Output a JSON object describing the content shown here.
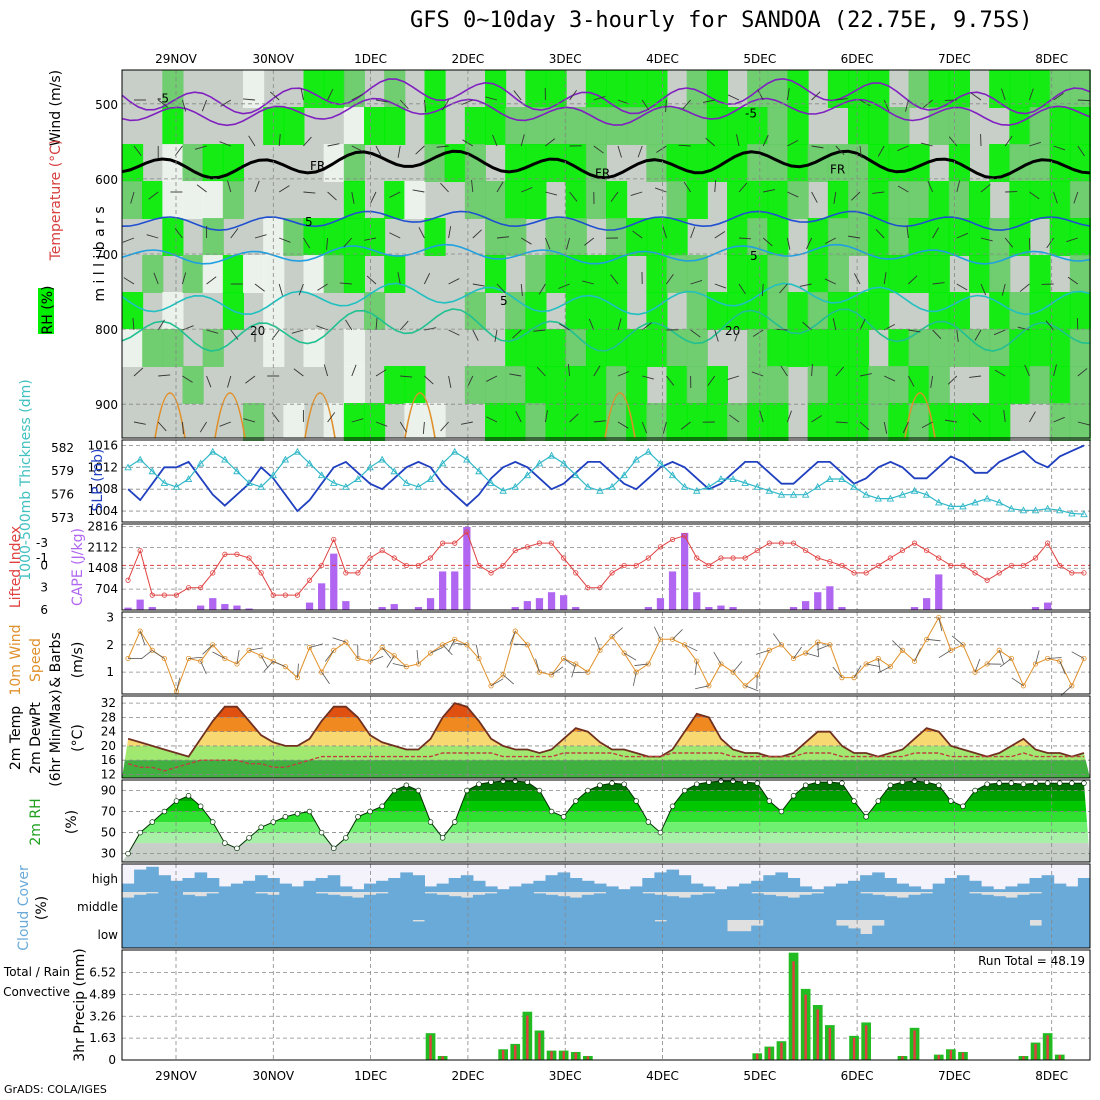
{
  "title": "GFS 0~10day 3-hourly for SANDOA (22.75E, 9.75S)",
  "credit": "GrADS: COLA/IGES",
  "dates": [
    "29NOV",
    "30NOV",
    "1DEC",
    "2DEC",
    "3DEC",
    "4DEC",
    "5DEC",
    "6DEC",
    "7DEC",
    "8DEC"
  ],
  "colors": {
    "green_bright": "#00ee00",
    "green_mid": "#66cc66",
    "grey": "#c8cfc8",
    "purple": "#b066f0",
    "red": "#e04040",
    "blue": "#2040c0",
    "cyan": "#40c0c0",
    "orange": "#e0902a",
    "sky": "#6aaad8"
  },
  "chart_data": [
    {
      "type": "heatmap",
      "name": "upper-air",
      "axis_label_left": "Wind (m/s)",
      "axis_label_temp": "Temperature (°C)",
      "axis_label_rh": "RH (%)",
      "ylabel": "millibars",
      "yticks": [
        500,
        600,
        700,
        800,
        900
      ],
      "contour_labels": [
        "-5",
        "-5",
        "FR",
        "FR",
        "FR",
        "5",
        "5",
        "5",
        "20",
        "20"
      ]
    },
    {
      "type": "line",
      "name": "slp-thickness",
      "ylabel_left": "1000-500mb Thickness (dm)",
      "ylabel_right": "SLP (mb)",
      "yticks_left": [
        573,
        576,
        579,
        582
      ],
      "yticks_right": [
        1004,
        1008,
        1012,
        1016
      ],
      "series": [
        {
          "name": "SLP",
          "color": "#2040c0",
          "values": [
            1008,
            1006,
            1009,
            1012,
            1012,
            1013,
            1010,
            1007,
            1005,
            1007,
            1009,
            1012,
            1010,
            1007,
            1004,
            1006,
            1009,
            1012,
            1013,
            1011,
            1009,
            1008,
            1010,
            1012,
            1013,
            1012,
            1009,
            1007,
            1005,
            1007,
            1010,
            1012,
            1013,
            1012,
            1010,
            1008,
            1009,
            1011,
            1013,
            1013,
            1011,
            1009,
            1008,
            1010,
            1012,
            1013,
            1012,
            1010,
            1008,
            1009,
            1011,
            1013,
            1013,
            1011,
            1009,
            1009,
            1011,
            1013,
            1013,
            1011,
            1009,
            1010,
            1012,
            1013,
            1012,
            1010,
            1010,
            1012,
            1014,
            1013,
            1011,
            1011,
            1013,
            1014,
            1015,
            1013,
            1012,
            1014,
            1015,
            1016
          ]
        },
        {
          "name": "Thickness",
          "color": "#30b8c8",
          "values": [
            579.5,
            580.5,
            579,
            577.5,
            577,
            578,
            580,
            581.5,
            580.5,
            579,
            577.5,
            577,
            578.5,
            580.5,
            581.5,
            580,
            578.5,
            577.5,
            577,
            578,
            579.5,
            580.5,
            579,
            577.5,
            577,
            578,
            580,
            581.5,
            580.5,
            579,
            577.5,
            576.5,
            577,
            578.5,
            580,
            581,
            580,
            578.5,
            577,
            576.5,
            577,
            578.5,
            580.5,
            581.5,
            580,
            578.5,
            577,
            576.5,
            577,
            578,
            578,
            577.5,
            577,
            576.5,
            576,
            576,
            576,
            577,
            578,
            578,
            577,
            576,
            575.5,
            575.5,
            576,
            576.5,
            576,
            575,
            574.5,
            574.5,
            575,
            575.5,
            575,
            574.2,
            574,
            574,
            574.2,
            574,
            573.6,
            573.5
          ]
        }
      ]
    },
    {
      "type": "bar",
      "name": "lifted-index-cape",
      "ylabel_left": "Lifted Index",
      "ylabel_right": "CAPE (J/kg)",
      "yticks_left": [
        -3,
        -1,
        0,
        3,
        6
      ],
      "yticks_right": [
        704,
        1408,
        2112,
        2816
      ],
      "series": [
        {
          "name": "CAPE",
          "color": "#b066f0",
          "values": [
            80,
            350,
            100,
            0,
            0,
            0,
            150,
            400,
            200,
            150,
            50,
            0,
            0,
            0,
            0,
            250,
            900,
            1900,
            300,
            0,
            0,
            100,
            200,
            0,
            100,
            400,
            1300,
            1300,
            2800,
            0,
            0,
            0,
            100,
            300,
            400,
            600,
            500,
            100,
            0,
            0,
            0,
            0,
            0,
            100,
            400,
            1300,
            2600,
            600,
            100,
            150,
            100,
            0,
            0,
            0,
            0,
            100,
            300,
            600,
            800,
            100,
            0,
            0,
            0,
            0,
            0,
            100,
            400,
            1200,
            0,
            0,
            0,
            0,
            0,
            0,
            0,
            100,
            250,
            0,
            0,
            0
          ]
        },
        {
          "name": "Lifted Index",
          "color": "#e04040",
          "values": [
            2,
            -2,
            4,
            4,
            4,
            3,
            3,
            1,
            -1.5,
            -1.5,
            -1,
            1,
            4,
            4,
            4,
            2,
            0,
            -3.5,
            1,
            1,
            -1,
            -2,
            -1,
            0,
            0,
            -1,
            -3,
            -3,
            -4.5,
            0,
            1,
            0,
            -2,
            -2.5,
            -3,
            -3,
            -1,
            1,
            3,
            3,
            1,
            0,
            0,
            -1,
            -2.5,
            -3.5,
            -4,
            -1,
            0,
            -1,
            -1,
            -1,
            -2,
            -3,
            -3,
            -3,
            -2,
            -1,
            -0.5,
            0,
            1,
            1,
            0,
            -1,
            -2,
            -3,
            -2,
            -1,
            0,
            0,
            1,
            2,
            1,
            0,
            0,
            -1,
            -3,
            0,
            1,
            1
          ]
        }
      ]
    },
    {
      "type": "line",
      "name": "10m-wind",
      "ylabel": "10m Wind Speed & Barbs (m/s)",
      "yticks": [
        1,
        2,
        3
      ],
      "series": [
        {
          "name": "Wind Speed",
          "color": "#e0902a",
          "values": [
            1.5,
            2.5,
            1.8,
            1.5,
            0.3,
            1.5,
            1.4,
            2.0,
            1.5,
            1.3,
            1.8,
            1.6,
            1.4,
            1.2,
            0.8,
            1.9,
            1.0,
            1.8,
            2.1,
            1.5,
            1.4,
            1.9,
            1.6,
            1.2,
            1.3,
            1.7,
            2.0,
            2.2,
            2.0,
            1.5,
            0.5,
            0.9,
            2.5,
            2.0,
            1.0,
            0.9,
            1.5,
            1.3,
            1.0,
            1.8,
            2.3,
            1.7,
            1.0,
            1.3,
            2.2,
            2.2,
            2.0,
            1.4,
            0.5,
            1.3,
            1.0,
            0.5,
            0.9,
            1.8,
            2.0,
            1.5,
            1.7,
            2.1,
            2.0,
            0.8,
            0.8,
            1.3,
            1.5,
            1.2,
            1.8,
            1.4,
            2.2,
            3.0,
            1.8,
            2.0,
            1.0,
            1.3,
            1.8,
            1.5,
            0.5,
            1.3,
            1.5,
            1.4,
            0.5,
            1.5
          ]
        }
      ]
    },
    {
      "type": "area",
      "name": "2m-temp",
      "ylabel": "2m Temp 2m DewPt (6hr Min/Max) (°C)",
      "yticks": [
        12,
        16,
        20,
        24,
        28,
        32
      ],
      "series": [
        {
          "name": "2m Temp",
          "color": "#703020",
          "values": [
            22,
            21,
            20,
            19,
            18,
            17,
            22,
            27,
            31,
            31,
            27,
            23,
            21,
            20,
            20,
            22,
            27,
            31,
            31,
            28,
            23,
            21,
            20,
            19,
            19,
            22,
            28,
            32,
            31,
            27,
            22,
            20,
            19,
            19,
            18,
            19,
            22,
            25,
            24,
            21,
            19,
            19,
            18,
            17,
            17,
            19,
            24,
            29,
            28,
            22,
            19,
            18,
            18,
            17,
            17,
            18,
            21,
            24,
            24,
            20,
            18,
            18,
            17,
            18,
            19,
            22,
            25,
            24,
            20,
            19,
            18,
            17,
            18,
            20,
            22,
            19,
            18,
            18,
            17,
            18
          ]
        },
        {
          "name": "2m DewPt",
          "color": "#c04040",
          "values": [
            15,
            14,
            14,
            13,
            14,
            15,
            16,
            16,
            16,
            16,
            15,
            15,
            14,
            14,
            15,
            16,
            17,
            17,
            17,
            17,
            17,
            17,
            17,
            17,
            17,
            17,
            18,
            18,
            18,
            18,
            18,
            17,
            17,
            17,
            17,
            17,
            18,
            18,
            18,
            18,
            18,
            17,
            17,
            17,
            17,
            18,
            18,
            18,
            18,
            18,
            17,
            17,
            17,
            17,
            17,
            17,
            18,
            18,
            18,
            17,
            17,
            17,
            17,
            17,
            17,
            18,
            18,
            18,
            17,
            17,
            17,
            17,
            17,
            17,
            18,
            17,
            17,
            17,
            17,
            17
          ]
        }
      ]
    },
    {
      "type": "area",
      "name": "2m-rh",
      "ylabel": "2m RH (%)",
      "yticks": [
        30,
        50,
        70,
        90
      ],
      "series": [
        {
          "name": "2m RH",
          "color": "#00aa00",
          "values": [
            30,
            50,
            60,
            70,
            80,
            85,
            75,
            60,
            40,
            35,
            45,
            55,
            60,
            65,
            68,
            70,
            50,
            35,
            45,
            65,
            70,
            75,
            90,
            95,
            90,
            60,
            45,
            60,
            90,
            96,
            98,
            99,
            99,
            98,
            90,
            70,
            65,
            80,
            90,
            95,
            97,
            96,
            80,
            60,
            50,
            75,
            90,
            96,
            98,
            99,
            99,
            98,
            97,
            80,
            70,
            85,
            95,
            98,
            98,
            97,
            80,
            65,
            80,
            95,
            98,
            99,
            98,
            95,
            80,
            75,
            90,
            96,
            97,
            97,
            96,
            97,
            97,
            97,
            97,
            97
          ]
        }
      ]
    },
    {
      "type": "bar",
      "name": "cloud-cover",
      "ylabel": "Cloud Cover (%)",
      "ylabels": [
        "high",
        "middle",
        "low"
      ],
      "series": [
        {
          "name": "high",
          "values": [
            30,
            80,
            90,
            60,
            40,
            50,
            70,
            50,
            20,
            30,
            40,
            60,
            50,
            30,
            20,
            40,
            50,
            60,
            20,
            10,
            30,
            40,
            50,
            70,
            60,
            20,
            30,
            50,
            60,
            40,
            20,
            10,
            20,
            30,
            40,
            60,
            70,
            50,
            40,
            30,
            20,
            10,
            20,
            50,
            70,
            80,
            60,
            30,
            20,
            10,
            20,
            30,
            40,
            60,
            70,
            50,
            20,
            10,
            20,
            30,
            40,
            60,
            70,
            50,
            30,
            20,
            10,
            30,
            50,
            60,
            40,
            20,
            10,
            20,
            30,
            50,
            60,
            30,
            20,
            50
          ]
        },
        {
          "name": "middle",
          "values": [
            80,
            90,
            95,
            100,
            100,
            90,
            85,
            95,
            100,
            100,
            100,
            95,
            90,
            100,
            100,
            100,
            95,
            90,
            85,
            80,
            90,
            95,
            100,
            100,
            100,
            95,
            90,
            85,
            80,
            90,
            95,
            100,
            100,
            100,
            95,
            90,
            85,
            80,
            90,
            95,
            100,
            100,
            100,
            95,
            90,
            85,
            80,
            90,
            95,
            100,
            100,
            100,
            95,
            90,
            85,
            80,
            90,
            95,
            100,
            100,
            100,
            95,
            90,
            85,
            80,
            90,
            95,
            100,
            100,
            100,
            95,
            90,
            85,
            80,
            90,
            95,
            100,
            100,
            100,
            100
          ]
        },
        {
          "name": "low",
          "values": [
            100,
            100,
            100,
            100,
            100,
            100,
            100,
            100,
            100,
            100,
            100,
            100,
            100,
            100,
            100,
            100,
            100,
            100,
            100,
            100,
            100,
            100,
            100,
            100,
            95,
            100,
            100,
            100,
            100,
            100,
            100,
            100,
            100,
            100,
            100,
            100,
            100,
            100,
            100,
            100,
            100,
            100,
            100,
            100,
            95,
            100,
            100,
            100,
            100,
            100,
            60,
            60,
            80,
            100,
            100,
            100,
            100,
            100,
            100,
            80,
            70,
            50,
            80,
            100,
            100,
            100,
            100,
            100,
            100,
            100,
            100,
            100,
            100,
            100,
            100,
            80,
            100,
            100,
            100,
            100
          ]
        }
      ]
    },
    {
      "type": "bar",
      "name": "precip",
      "ylabel": "3hr Precip (mm)",
      "yticks": [
        0,
        1.63,
        3.26,
        4.89,
        6.52
      ],
      "legend_left": [
        "Total / Rain",
        "Convective"
      ],
      "run_total_label": "Run Total = 48.19",
      "series": [
        {
          "name": "Total",
          "color": "#22bb22",
          "values": [
            0,
            0,
            0,
            0,
            0,
            0,
            0,
            0,
            0,
            0,
            0,
            0,
            0,
            0,
            0,
            0,
            0,
            0,
            0,
            0,
            0,
            0,
            0,
            0,
            0,
            2,
            0.3,
            0,
            0,
            0,
            0,
            0.8,
            1.2,
            3.6,
            2.2,
            0.7,
            0.7,
            0.6,
            0.3,
            0,
            0,
            0,
            0,
            0,
            0,
            0,
            0,
            0,
            0,
            0,
            0,
            0,
            0.5,
            1.0,
            1.4,
            8.0,
            5.3,
            4.1,
            2.6,
            0,
            1.8,
            2.8,
            0,
            0,
            0.3,
            2.4,
            0,
            0.4,
            0.8,
            0.6,
            0,
            0,
            0,
            0,
            0.3,
            1.3,
            2.0,
            0.4,
            0,
            0
          ]
        }
      ]
    }
  ]
}
